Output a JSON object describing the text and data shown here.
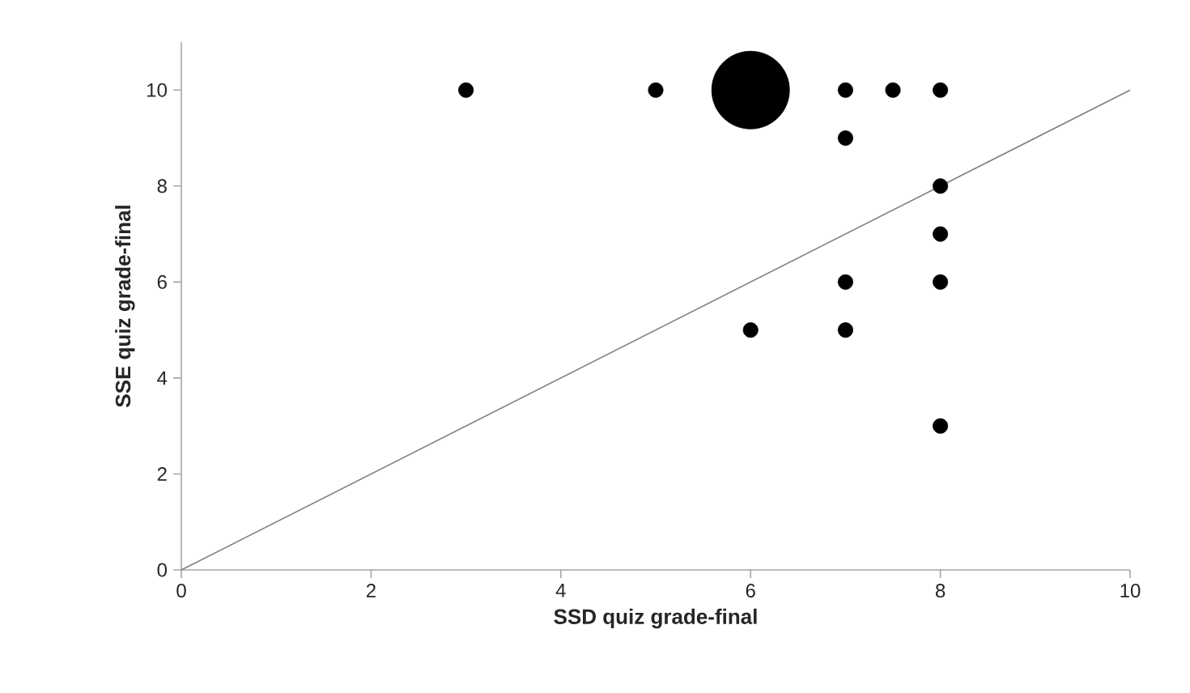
{
  "chart_data": {
    "type": "bubble",
    "xlabel": "SSD quiz grade-final",
    "ylabel": "SSE quiz grade-final",
    "xlim": [
      0,
      10
    ],
    "ylim": [
      0,
      11
    ],
    "xticks": [
      0,
      2,
      4,
      6,
      8,
      10
    ],
    "yticks": [
      0,
      2,
      4,
      6,
      8,
      10
    ],
    "series": [
      {
        "type": "bubble",
        "color": "#000000",
        "x": [
          3,
          5,
          6,
          7,
          7.5,
          8,
          7,
          8,
          8,
          8,
          7,
          6,
          7,
          8
        ],
        "values": [
          10,
          10,
          10,
          10,
          10,
          10,
          9,
          8,
          7,
          6,
          6,
          5,
          5,
          3
        ],
        "sizes": [
          0.036,
          0.036,
          1,
          0.036,
          0.036,
          0.036,
          0.036,
          0.036,
          0.036,
          0.036,
          0.036,
          0.036,
          0.036,
          0.036
        ]
      },
      {
        "type": "line",
        "color": "#808080",
        "x": [
          0,
          10
        ],
        "values": [
          0,
          10
        ]
      }
    ]
  }
}
